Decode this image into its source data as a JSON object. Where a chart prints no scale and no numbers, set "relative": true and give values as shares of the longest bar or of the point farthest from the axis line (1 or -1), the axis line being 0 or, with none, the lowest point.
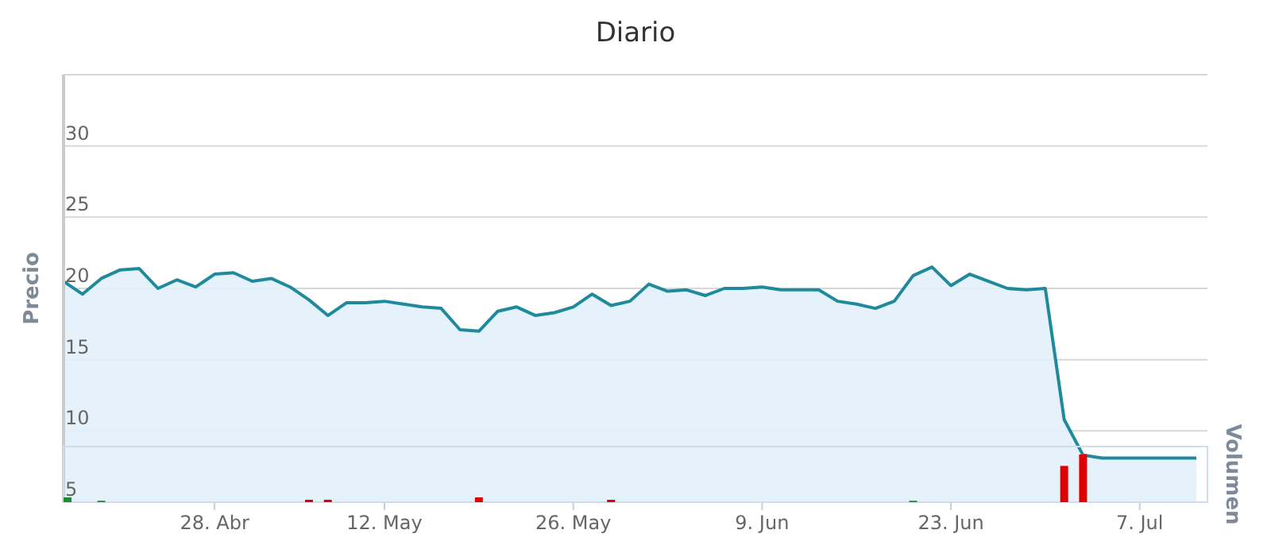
{
  "chart_data": [
    {
      "type": "area",
      "title": "Diario",
      "ylabel": "Precio",
      "categories": [
        null,
        null,
        null,
        null,
        null,
        null,
        null,
        null,
        "28. Abr",
        null,
        null,
        null,
        null,
        null,
        null,
        null,
        null,
        "12. May",
        null,
        null,
        null,
        null,
        null,
        null,
        null,
        null,
        null,
        "26. May",
        null,
        null,
        null,
        null,
        null,
        null,
        null,
        null,
        null,
        "9. Jun",
        null,
        null,
        null,
        null,
        null,
        null,
        null,
        null,
        null,
        "23. Jun",
        null,
        null,
        null,
        null,
        null,
        null,
        null,
        null,
        null,
        "7. Jul",
        null,
        null,
        null
      ],
      "series": [
        {
          "color": "#1f8a9c",
          "values": [
            20.5,
            19.6,
            20.7,
            21.3,
            21.4,
            20.0,
            20.6,
            20.1,
            21.0,
            21.1,
            20.5,
            20.7,
            20.1,
            19.2,
            18.1,
            19.0,
            19.0,
            19.1,
            18.9,
            18.7,
            18.6,
            17.1,
            17.0,
            18.4,
            18.7,
            18.1,
            18.3,
            18.7,
            19.6,
            18.8,
            19.1,
            20.3,
            19.8,
            19.9,
            19.5,
            20.0,
            20.0,
            20.1,
            19.9,
            19.9,
            19.9,
            19.1,
            18.9,
            18.6,
            19.1,
            20.9,
            21.5,
            20.2,
            21.0,
            20.5,
            20.0,
            19.9,
            20.0,
            10.8,
            8.3,
            8.1,
            8.1,
            8.1,
            8.1,
            8.1,
            8.1
          ]
        }
      ],
      "ylim": [
        5,
        35
      ],
      "yticks": [
        5,
        10,
        15,
        20,
        25,
        30,
        {
          "value": 35,
          "label": null
        }
      ],
      "grid": "y"
    },
    {
      "type": "bar",
      "ylabel": "Volumen",
      "relative": true,
      "categories": [
        null,
        null,
        null,
        null,
        null,
        null,
        null,
        null,
        null,
        null,
        null,
        null,
        null,
        null,
        null,
        null,
        null,
        null,
        null,
        null,
        null,
        null,
        null,
        null,
        null,
        null,
        null,
        null,
        null,
        null,
        null,
        null,
        null,
        null,
        null,
        null,
        null,
        null,
        null,
        null,
        null,
        null,
        null,
        null,
        null,
        null,
        null,
        null,
        null,
        null,
        null,
        null,
        null,
        null,
        null,
        null,
        null,
        null,
        null,
        null,
        null
      ],
      "values": [
        0.1,
        null,
        0.03,
        null,
        null,
        null,
        null,
        null,
        null,
        null,
        null,
        null,
        null,
        0.05,
        0.05,
        null,
        null,
        null,
        null,
        null,
        null,
        null,
        0.1,
        null,
        null,
        null,
        null,
        null,
        null,
        0.05,
        null,
        null,
        null,
        null,
        null,
        null,
        null,
        null,
        null,
        null,
        null,
        null,
        null,
        null,
        null,
        0.03,
        null,
        null,
        null,
        null,
        null,
        null,
        null,
        0.76,
        1,
        null,
        null,
        null,
        null,
        null,
        null
      ],
      "colors": [
        "#1e8c2e",
        null,
        "#1e8c2e",
        null,
        null,
        null,
        null,
        null,
        null,
        null,
        null,
        null,
        null,
        "#e00000",
        "#e00000",
        null,
        null,
        null,
        null,
        null,
        null,
        null,
        "#e00000",
        null,
        null,
        null,
        null,
        null,
        null,
        "#e00000",
        null,
        null,
        null,
        null,
        null,
        null,
        null,
        null,
        null,
        null,
        null,
        null,
        null,
        null,
        null,
        "#1e8c2e",
        null,
        null,
        null,
        null,
        null,
        null,
        null,
        "#e00000",
        "#e00000",
        null,
        null,
        null,
        null,
        null,
        null
      ]
    }
  ]
}
